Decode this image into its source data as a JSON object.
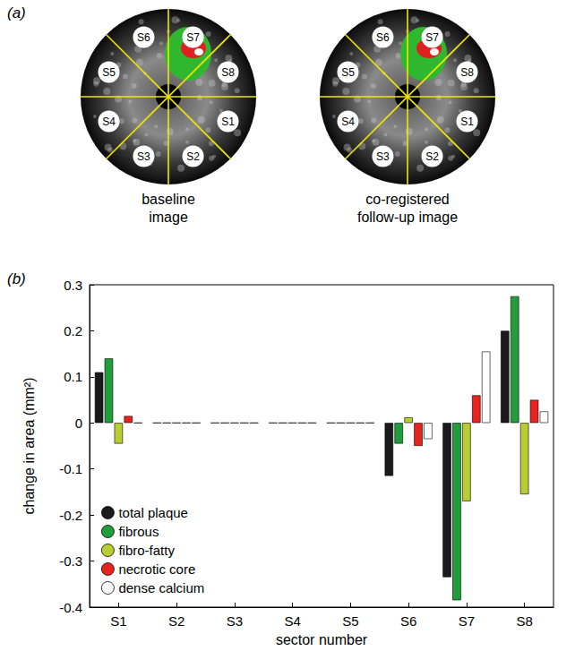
{
  "panel_a": {
    "panel_label": "(a)",
    "sectors": [
      "S1",
      "S2",
      "S3",
      "S4",
      "S5",
      "S6",
      "S7",
      "S8"
    ],
    "images": [
      {
        "caption": [
          "baseline",
          "image"
        ]
      },
      {
        "caption": [
          "co-registered",
          "follow-up image"
        ]
      }
    ]
  },
  "chart_data": {
    "type": "bar",
    "panel_label": "(b)",
    "x_label": "sector number",
    "y_label": "change in area (mm²)",
    "categories": [
      "S1",
      "S2",
      "S3",
      "S4",
      "S5",
      "S6",
      "S7",
      "S8"
    ],
    "series": [
      {
        "name": "total plaque",
        "color": "#1a1a1a",
        "values": [
          0.11,
          0,
          0,
          0,
          0,
          -0.115,
          -0.335,
          0.2
        ]
      },
      {
        "name": "fibrous",
        "color": "#1f9e3a",
        "values": [
          0.14,
          0,
          0,
          0,
          0,
          -0.045,
          -0.385,
          0.275
        ]
      },
      {
        "name": "fibro-fatty",
        "color": "#b9cc33",
        "values": [
          -0.045,
          0,
          0,
          0,
          0,
          0.012,
          -0.17,
          -0.155
        ]
      },
      {
        "name": "necrotic core",
        "color": "#e8231f",
        "values": [
          0.015,
          0,
          0,
          0,
          0,
          -0.05,
          0.06,
          0.05
        ]
      },
      {
        "name": "dense calcium",
        "color": "#ffffff",
        "values": [
          0,
          0,
          0,
          0,
          0,
          -0.035,
          0.155,
          0.025
        ]
      }
    ],
    "ylim": [
      -0.4,
      0.3
    ],
    "yticks": [
      -0.4,
      -0.3,
      -0.2,
      -0.1,
      0,
      0.1,
      0.2,
      0.3
    ],
    "grid": false,
    "legend": "lower left"
  }
}
